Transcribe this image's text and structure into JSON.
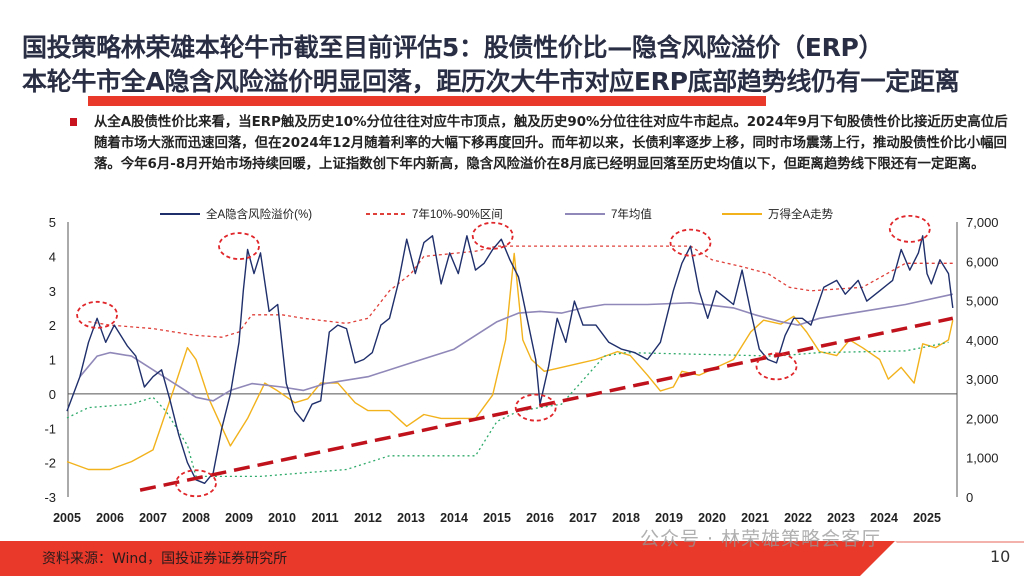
{
  "title_line1": "国投策略林荣雄本轮牛市截至目前评估5：股债性价比—隐含风险溢价（ERP）",
  "title_line2": "本轮牛市全A隐含风险溢价明显回落，距历次大牛市对应ERP底部趋势线仍有一定距离",
  "bullet_text": "从全A股债性价比来看，当ERP触及历史10%分位往往对应牛市顶点，触及历史90%分位往往对应牛市起点。2024年9月下旬股债性价比接近历史高位后随着市场大涨而迅速回落，但在2024年12月随着利率的大幅下移再度回升。而年初以来，长债利率逐步上移，同时市场震荡上行，推动股债性价比小幅回落。今年6月-8月开始市场持续回暖，上证指数创下年内新高，隐含风险溢价在8月底已经明显回落至历史均值以下，但距离趋势线下限还有一定距离。",
  "source": "资料来源：Wind，国投证券证券研究所",
  "page_number": "10",
  "watermark": "公众号 · 林荣雄策略会客厅",
  "colors": {
    "accent_red": "#e8392b",
    "erp": "#1f2f6b",
    "band_upper": "#e0403a",
    "band_lower": "#2eaa6a",
    "mean": "#9088b8",
    "wind": "#f2b21c",
    "trend": "#c0121c"
  },
  "chart_data": {
    "type": "line",
    "x_ticks": [
      "2005",
      "2006",
      "2007",
      "2008",
      "2009",
      "2010",
      "2011",
      "2012",
      "2013",
      "2014",
      "2015",
      "2016",
      "2017",
      "2018",
      "2019",
      "2020",
      "2021",
      "2022",
      "2023",
      "2024",
      "2025"
    ],
    "y_left_ticks": [
      "5",
      "4",
      "3",
      "2",
      "1",
      "0",
      "-1",
      "-2",
      "-3"
    ],
    "y_left_range": [
      -3,
      5
    ],
    "y_right_ticks": [
      "7,000",
      "6,000",
      "5,000",
      "4,000",
      "3,000",
      "2,000",
      "1,000",
      "0"
    ],
    "y_right_range": [
      0,
      7000
    ],
    "legend_position": "top",
    "legend": [
      "全A隐含风险溢价(%)",
      "7年10%-90%区间",
      "7年均值",
      "万得全A走势"
    ],
    "series": [
      {
        "name": "全A隐含风险溢价(%)",
        "axis": "left",
        "points": [
          [
            2005.0,
            -0.5
          ],
          [
            2005.3,
            0.5
          ],
          [
            2005.5,
            1.5
          ],
          [
            2005.7,
            2.2
          ],
          [
            2005.9,
            1.5
          ],
          [
            2006.1,
            2.0
          ],
          [
            2006.4,
            1.4
          ],
          [
            2006.6,
            1.1
          ],
          [
            2006.8,
            0.2
          ],
          [
            2007.0,
            0.5
          ],
          [
            2007.2,
            0.7
          ],
          [
            2007.4,
            -0.2
          ],
          [
            2007.6,
            -1.2
          ],
          [
            2007.8,
            -2.0
          ],
          [
            2008.0,
            -2.5
          ],
          [
            2008.2,
            -2.6
          ],
          [
            2008.4,
            -2.3
          ],
          [
            2008.6,
            -1.0
          ],
          [
            2008.8,
            0.0
          ],
          [
            2009.0,
            1.5
          ],
          [
            2009.1,
            3.0
          ],
          [
            2009.2,
            4.2
          ],
          [
            2009.35,
            3.5
          ],
          [
            2009.5,
            4.1
          ],
          [
            2009.7,
            2.4
          ],
          [
            2009.9,
            2.6
          ],
          [
            2010.1,
            0.3
          ],
          [
            2010.3,
            -0.5
          ],
          [
            2010.5,
            -0.8
          ],
          [
            2010.7,
            -0.3
          ],
          [
            2010.9,
            -0.2
          ],
          [
            2011.1,
            1.8
          ],
          [
            2011.3,
            2.0
          ],
          [
            2011.5,
            1.9
          ],
          [
            2011.7,
            0.9
          ],
          [
            2011.9,
            1.0
          ],
          [
            2012.1,
            1.2
          ],
          [
            2012.3,
            2.0
          ],
          [
            2012.5,
            2.2
          ],
          [
            2012.7,
            3.2
          ],
          [
            2012.9,
            4.5
          ],
          [
            2013.1,
            3.5
          ],
          [
            2013.3,
            4.4
          ],
          [
            2013.5,
            4.6
          ],
          [
            2013.7,
            3.2
          ],
          [
            2013.9,
            4.1
          ],
          [
            2014.1,
            3.5
          ],
          [
            2014.3,
            4.6
          ],
          [
            2014.5,
            3.6
          ],
          [
            2014.7,
            3.8
          ],
          [
            2014.9,
            4.2
          ],
          [
            2015.1,
            4.5
          ],
          [
            2015.3,
            3.9
          ],
          [
            2015.5,
            3.4
          ],
          [
            2015.7,
            2.2
          ],
          [
            2015.9,
            1.0
          ],
          [
            2016.0,
            -0.3
          ],
          [
            2016.2,
            0.8
          ],
          [
            2016.4,
            2.2
          ],
          [
            2016.6,
            1.5
          ],
          [
            2016.8,
            2.7
          ],
          [
            2017.0,
            2.0
          ],
          [
            2017.3,
            2.0
          ],
          [
            2017.6,
            1.5
          ],
          [
            2017.9,
            1.3
          ],
          [
            2018.2,
            1.2
          ],
          [
            2018.5,
            1.0
          ],
          [
            2018.8,
            1.5
          ],
          [
            2019.1,
            3.0
          ],
          [
            2019.3,
            3.8
          ],
          [
            2019.5,
            4.3
          ],
          [
            2019.7,
            3.0
          ],
          [
            2019.9,
            2.2
          ],
          [
            2020.1,
            3.0
          ],
          [
            2020.3,
            2.8
          ],
          [
            2020.5,
            2.6
          ],
          [
            2020.7,
            3.6
          ],
          [
            2020.9,
            2.4
          ],
          [
            2021.1,
            1.3
          ],
          [
            2021.3,
            1.0
          ],
          [
            2021.5,
            0.9
          ],
          [
            2021.7,
            1.7
          ],
          [
            2021.9,
            2.2
          ],
          [
            2022.1,
            2.2
          ],
          [
            2022.3,
            2.0
          ],
          [
            2022.6,
            3.1
          ],
          [
            2022.9,
            3.3
          ],
          [
            2023.1,
            2.9
          ],
          [
            2023.4,
            3.3
          ],
          [
            2023.6,
            2.7
          ],
          [
            2023.9,
            3.0
          ],
          [
            2024.2,
            3.3
          ],
          [
            2024.4,
            4.2
          ],
          [
            2024.6,
            3.6
          ],
          [
            2024.8,
            4.1
          ],
          [
            2024.9,
            4.6
          ],
          [
            2025.0,
            3.5
          ],
          [
            2025.1,
            3.2
          ],
          [
            2025.3,
            3.9
          ],
          [
            2025.5,
            3.5
          ],
          [
            2025.6,
            2.5
          ]
        ]
      },
      {
        "name": "7年10%-90%区间",
        "part": "upper",
        "axis": "left",
        "points": [
          [
            2005.5,
            2.1
          ],
          [
            2006,
            2.0
          ],
          [
            2007,
            1.9
          ],
          [
            2008,
            1.7
          ],
          [
            2008.6,
            1.65
          ],
          [
            2009,
            1.8
          ],
          [
            2009.3,
            2.3
          ],
          [
            2010,
            2.3
          ],
          [
            2010.5,
            2.2
          ],
          [
            2011.5,
            2.05
          ],
          [
            2012,
            2.2
          ],
          [
            2012.5,
            3.0
          ],
          [
            2013,
            3.5
          ],
          [
            2013.3,
            4.0
          ],
          [
            2014.5,
            4.15
          ],
          [
            2015,
            4.3
          ],
          [
            2019.5,
            4.3
          ],
          [
            2020,
            3.9
          ],
          [
            2020.7,
            3.7
          ],
          [
            2021.3,
            3.5
          ],
          [
            2021.8,
            3.1
          ],
          [
            2022.3,
            3.0
          ],
          [
            2023.5,
            3.1
          ],
          [
            2024.5,
            3.8
          ],
          [
            2025.6,
            3.8
          ]
        ]
      },
      {
        "name": "7年10%-90%区间",
        "part": "lower",
        "axis": "left",
        "points": [
          [
            2005,
            -0.7
          ],
          [
            2005.5,
            -0.4
          ],
          [
            2006.5,
            -0.3
          ],
          [
            2007,
            -0.1
          ],
          [
            2007.3,
            -0.5
          ],
          [
            2007.8,
            -1.5
          ],
          [
            2008.0,
            -2.4
          ],
          [
            2009.5,
            -2.4
          ],
          [
            2010.5,
            -2.3
          ],
          [
            2011.5,
            -2.2
          ],
          [
            2012,
            -2.0
          ],
          [
            2012.5,
            -1.8
          ],
          [
            2014.5,
            -1.8
          ],
          [
            2015,
            -0.8
          ],
          [
            2015.5,
            -0.5
          ],
          [
            2016,
            -0.4
          ],
          [
            2016.5,
            -0.3
          ],
          [
            2017,
            0.4
          ],
          [
            2017.5,
            1.1
          ],
          [
            2018,
            1.2
          ],
          [
            2021.5,
            1.1
          ],
          [
            2022.5,
            1.2
          ],
          [
            2024.5,
            1.25
          ],
          [
            2025.5,
            1.5
          ]
        ]
      },
      {
        "name": "7年均值",
        "axis": "left",
        "points": [
          [
            2005.3,
            0.5
          ],
          [
            2005.7,
            1.1
          ],
          [
            2006.0,
            1.2
          ],
          [
            2006.5,
            1.1
          ],
          [
            2007.0,
            0.7
          ],
          [
            2007.5,
            0.3
          ],
          [
            2008.0,
            -0.1
          ],
          [
            2008.4,
            -0.2
          ],
          [
            2008.8,
            0.1
          ],
          [
            2009.3,
            0.3
          ],
          [
            2010,
            0.2
          ],
          [
            2010.5,
            0.1
          ],
          [
            2011,
            0.3
          ],
          [
            2012,
            0.5
          ],
          [
            2013,
            0.9
          ],
          [
            2014,
            1.3
          ],
          [
            2014.5,
            1.7
          ],
          [
            2015,
            2.1
          ],
          [
            2015.5,
            2.35
          ],
          [
            2016,
            2.4
          ],
          [
            2016.5,
            2.35
          ],
          [
            2017,
            2.5
          ],
          [
            2017.5,
            2.6
          ],
          [
            2018.5,
            2.6
          ],
          [
            2019.5,
            2.65
          ],
          [
            2020.5,
            2.5
          ],
          [
            2021,
            2.3
          ],
          [
            2021.6,
            2.1
          ],
          [
            2022.0,
            2.0
          ],
          [
            2022.5,
            2.2
          ],
          [
            2023.5,
            2.4
          ],
          [
            2024.5,
            2.6
          ],
          [
            2025.6,
            2.9
          ]
        ]
      },
      {
        "name": "万得全A走势",
        "axis": "right",
        "points": [
          [
            2005,
            900
          ],
          [
            2005.5,
            700
          ],
          [
            2006,
            700
          ],
          [
            2006.5,
            900
          ],
          [
            2007,
            1200
          ],
          [
            2007.5,
            2800
          ],
          [
            2007.8,
            3800
          ],
          [
            2008,
            3500
          ],
          [
            2008.3,
            2500
          ],
          [
            2008.8,
            1300
          ],
          [
            2009.2,
            2000
          ],
          [
            2009.6,
            2900
          ],
          [
            2009.9,
            2700
          ],
          [
            2010.3,
            2400
          ],
          [
            2010.6,
            2500
          ],
          [
            2010.9,
            2900
          ],
          [
            2011.3,
            2900
          ],
          [
            2011.7,
            2400
          ],
          [
            2012,
            2200
          ],
          [
            2012.5,
            2200
          ],
          [
            2012.9,
            1800
          ],
          [
            2013.3,
            2100
          ],
          [
            2013.7,
            2000
          ],
          [
            2014.1,
            2000
          ],
          [
            2014.5,
            2000
          ],
          [
            2014.9,
            2600
          ],
          [
            2015.2,
            4000
          ],
          [
            2015.4,
            6200
          ],
          [
            2015.6,
            4000
          ],
          [
            2015.8,
            3500
          ],
          [
            2016.1,
            3200
          ],
          [
            2016.5,
            3300
          ],
          [
            2016.9,
            3400
          ],
          [
            2017.3,
            3500
          ],
          [
            2017.8,
            3700
          ],
          [
            2018.1,
            3600
          ],
          [
            2018.5,
            3100
          ],
          [
            2018.8,
            2700
          ],
          [
            2019.1,
            2800
          ],
          [
            2019.3,
            3200
          ],
          [
            2019.7,
            3100
          ],
          [
            2020.1,
            3300
          ],
          [
            2020.5,
            3500
          ],
          [
            2020.9,
            4200
          ],
          [
            2021.2,
            4500
          ],
          [
            2021.6,
            4400
          ],
          [
            2021.9,
            4600
          ],
          [
            2022.2,
            4200
          ],
          [
            2022.5,
            3700
          ],
          [
            2022.9,
            3600
          ],
          [
            2023.2,
            4000
          ],
          [
            2023.5,
            3800
          ],
          [
            2023.9,
            3500
          ],
          [
            2024.1,
            3000
          ],
          [
            2024.4,
            3300
          ],
          [
            2024.7,
            2900
          ],
          [
            2024.9,
            3900
          ],
          [
            2025.2,
            3800
          ],
          [
            2025.5,
            4000
          ],
          [
            2025.6,
            4500
          ]
        ]
      }
    ],
    "trendline": {
      "axis": "left",
      "from": [
        2006.7,
        -2.8
      ],
      "to": [
        2025.6,
        2.2
      ]
    },
    "highlight_circles": [
      [
        2005.7,
        2.3
      ],
      [
        2009.0,
        4.3
      ],
      [
        2014.9,
        4.6
      ],
      [
        2019.5,
        4.4
      ],
      [
        2024.6,
        4.8
      ],
      [
        2008.0,
        -2.6
      ],
      [
        2015.9,
        -0.4
      ],
      [
        2021.5,
        0.8
      ]
    ]
  }
}
